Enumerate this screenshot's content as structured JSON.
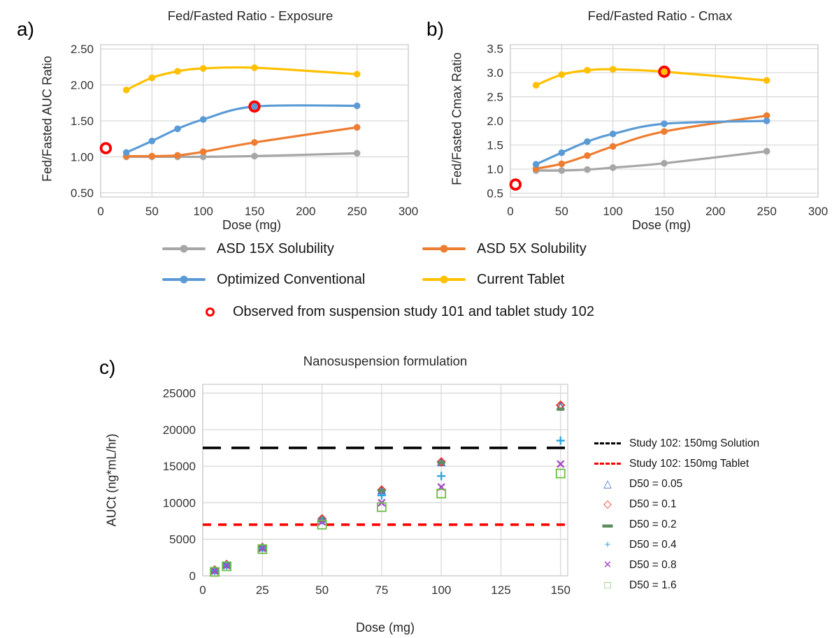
{
  "panels": {
    "a": {
      "label": "a)",
      "title": "Fed/Fasted Ratio - Exposure",
      "xlabel": "Dose (mg)",
      "ylabel": "Fed/Fasted AUC Ratio"
    },
    "b": {
      "label": "b)",
      "title": "Fed/Fasted Ratio - Cmax",
      "xlabel": "Dose (mg)",
      "ylabel": "Fed/Fasted Cmax Ratio"
    },
    "c": {
      "label": "c)",
      "title": "Nanosuspension formulation",
      "xlabel": "Dose (mg)",
      "ylabel": "AUCt (ng*mL/hr)"
    }
  },
  "legend_ab": {
    "items": [
      {
        "label": "ASD 15X Solubility",
        "color": "#A6A6A6"
      },
      {
        "label": "ASD 5X Solubility",
        "color": "#ED7D31"
      },
      {
        "label": "Optimized Conventional",
        "color": "#5B9BD5"
      },
      {
        "label": "Current Tablet",
        "color": "#FFC000"
      }
    ],
    "observed": {
      "label": "Observed from suspension study 101 and tablet study 102",
      "color": "#FF0000"
    }
  },
  "legend_c": {
    "items": [
      {
        "label": "Study 102: 150mg Solution",
        "color": "#000000",
        "type": "dashed-line"
      },
      {
        "label": "Study 102: 150mg Tablet",
        "color": "#FF0000",
        "type": "dashed-line"
      },
      {
        "label": "D50 = 0.05",
        "glyph": "△",
        "color": "#4472C4"
      },
      {
        "label": "D50 = 0.1",
        "glyph": "◇",
        "color": "#EE3124"
      },
      {
        "label": "D50 = 0.2",
        "glyph": "▬",
        "color": "#5E8D62"
      },
      {
        "label": "D50 = 0.4",
        "glyph": "+",
        "color": "#2FA6DE"
      },
      {
        "label": "D50 = 0.8",
        "glyph": "✕",
        "color": "#A54BC4"
      },
      {
        "label": "D50 = 1.6",
        "glyph": "□",
        "color": "#6CBE45"
      }
    ]
  },
  "chart_data": [
    {
      "id": "a",
      "type": "line",
      "title": "Fed/Fasted Ratio - Exposure",
      "xlabel": "Dose (mg)",
      "ylabel": "Fed/Fasted AUC Ratio",
      "x": [
        25,
        50,
        75,
        100,
        150,
        250
      ],
      "xticks": [
        0,
        50,
        100,
        150,
        200,
        250,
        300
      ],
      "yticks": [
        0.5,
        1.0,
        1.5,
        2.0,
        2.5
      ],
      "xlim": [
        0,
        300
      ],
      "ylim": [
        0.44,
        2.56
      ],
      "grid": true,
      "series": [
        {
          "name": "ASD 15X Solubility",
          "color": "#A6A6A6",
          "values": [
            1.0,
            1.0,
            1.0,
            1.0,
            1.01,
            1.05
          ]
        },
        {
          "name": "ASD 5X Solubility",
          "color": "#ED7D31",
          "values": [
            1.01,
            1.01,
            1.02,
            1.07,
            1.2,
            1.41
          ]
        },
        {
          "name": "Optimized Conventional",
          "color": "#5B9BD5",
          "values": [
            1.06,
            1.22,
            1.39,
            1.52,
            1.7,
            1.71
          ]
        },
        {
          "name": "Current Tablet",
          "color": "#FFC000",
          "values": [
            1.93,
            2.1,
            2.19,
            2.23,
            2.24,
            2.15
          ]
        }
      ],
      "observed": {
        "name": "Observed from suspension study 101 and tablet study 102",
        "color": "#FF0000",
        "points": [
          [
            5,
            1.12
          ],
          [
            150,
            1.7
          ]
        ]
      }
    },
    {
      "id": "b",
      "type": "line",
      "title": "Fed/Fasted Ratio - Cmax",
      "xlabel": "Dose (mg)",
      "ylabel": "Fed/Fasted Cmax Ratio",
      "x": [
        25,
        50,
        75,
        100,
        150,
        250
      ],
      "xticks": [
        0,
        50,
        100,
        150,
        200,
        250,
        300
      ],
      "yticks": [
        0.5,
        1.0,
        1.5,
        2.0,
        2.5,
        3.0,
        3.5
      ],
      "xlim": [
        0,
        300
      ],
      "ylim": [
        0.42,
        3.58
      ],
      "grid": true,
      "series": [
        {
          "name": "ASD 15X Solubility",
          "color": "#A6A6A6",
          "values": [
            0.97,
            0.97,
            0.99,
            1.03,
            1.12,
            1.37
          ]
        },
        {
          "name": "ASD 5X Solubility",
          "color": "#ED7D31",
          "values": [
            1.01,
            1.11,
            1.28,
            1.47,
            1.78,
            2.11
          ]
        },
        {
          "name": "Optimized Conventional",
          "color": "#5B9BD5",
          "values": [
            1.1,
            1.34,
            1.57,
            1.73,
            1.94,
            2.0
          ]
        },
        {
          "name": "Current Tablet",
          "color": "#FFC000",
          "values": [
            2.74,
            2.96,
            3.05,
            3.07,
            3.02,
            2.84
          ]
        }
      ],
      "observed": {
        "name": "Observed from suspension study 101 and tablet study 102",
        "color": "#FF0000",
        "points": [
          [
            5,
            0.68
          ],
          [
            150,
            3.02
          ]
        ]
      }
    },
    {
      "id": "c",
      "type": "scatter",
      "title": "Nanosuspension formulation",
      "xlabel": "Dose (mg)",
      "ylabel": "AUCt (ng*mL/hr)",
      "x": [
        5,
        10,
        25,
        50,
        75,
        100,
        150
      ],
      "xticks": [
        0,
        25,
        50,
        75,
        100,
        125,
        150
      ],
      "yticks": [
        0,
        5000,
        10000,
        15000,
        20000,
        25000
      ],
      "xlim": [
        0,
        153
      ],
      "ylim": [
        0,
        26200
      ],
      "grid": true,
      "series": [
        {
          "name": "D50 = 0.05",
          "marker": "triangle",
          "color": "#4472C4",
          "values": [
            750,
            1500,
            3850,
            7750,
            11600,
            15450,
            23200
          ]
        },
        {
          "name": "D50 = 0.1",
          "marker": "diamond",
          "color": "#EE3124",
          "values": [
            800,
            1560,
            3900,
            7800,
            11750,
            15600,
            23350
          ]
        },
        {
          "name": "D50 = 0.2",
          "marker": "dash",
          "color": "#5E8D62",
          "values": [
            760,
            1520,
            3870,
            7780,
            11650,
            15500,
            22800
          ]
        },
        {
          "name": "D50 = 0.4",
          "marker": "plus",
          "color": "#2FA6DE",
          "values": [
            700,
            1450,
            3800,
            7600,
            11000,
            13650,
            18500
          ]
        },
        {
          "name": "D50 = 0.8",
          "marker": "x",
          "color": "#A54BC4",
          "values": [
            640,
            1400,
            3750,
            7400,
            10000,
            12150,
            15300
          ]
        },
        {
          "name": "D50 = 1.6",
          "marker": "square",
          "color": "#6CBE45",
          "values": [
            540,
            1300,
            3650,
            7000,
            9400,
            11250,
            14000
          ]
        }
      ],
      "ref_lines": [
        {
          "name": "Study 102: 150mg Solution",
          "color": "#000000",
          "y": 17500,
          "style": "long-dash"
        },
        {
          "name": "Study 102: 150mg Tablet",
          "color": "#FF0000",
          "y": 7000,
          "style": "short-dash"
        }
      ]
    }
  ]
}
